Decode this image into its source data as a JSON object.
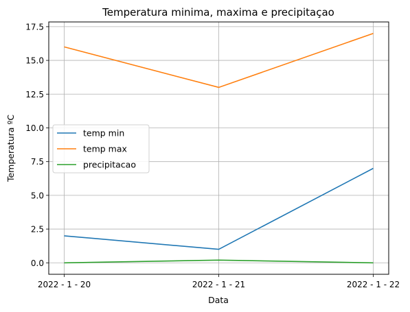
{
  "chart_data": {
    "type": "line",
    "title": "Temperatura minima, maxima e precipitaçao",
    "xlabel": "Data",
    "ylabel": "Temperatura ºC",
    "categories": [
      "2022 - 1 - 20",
      "2022 - 1 - 21",
      "2022 - 1 - 22"
    ],
    "series": [
      {
        "name": "temp min",
        "values": [
          2.0,
          1.0,
          7.0
        ],
        "color": "#1f77b4"
      },
      {
        "name": "temp max",
        "values": [
          16.0,
          13.0,
          17.0
        ],
        "color": "#ff7f0e"
      },
      {
        "name": "precipitacao",
        "values": [
          0.0,
          0.2,
          0.0
        ],
        "color": "#2ca02c"
      }
    ],
    "ylim": [
      -0.85,
      17.85
    ],
    "yticks": [
      "0.0",
      "2.5",
      "5.0",
      "7.5",
      "10.0",
      "12.5",
      "15.0",
      "17.5"
    ],
    "grid": true,
    "legend": "center-left"
  }
}
